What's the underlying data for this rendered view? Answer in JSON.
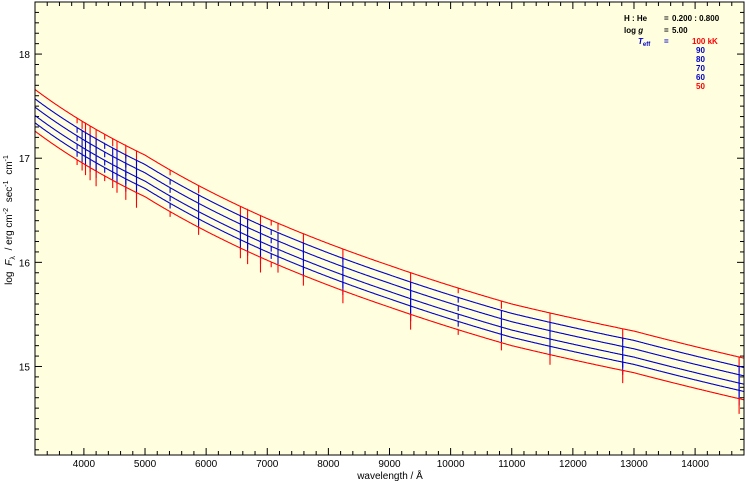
{
  "chart_data": {
    "type": "line",
    "xlabel": "wavelength / Å",
    "ylabel_parts": {
      "log": "log",
      "flux_symbol": "F",
      "flux_subscript": "λ",
      "unit_main": "/ erg cm",
      "unit_exp1": "-2",
      "unit_sec": "sec",
      "unit_exp2": "-1",
      "unit_cm": "cm",
      "unit_exp3": "-1"
    },
    "xlim": [
      3200,
      14800
    ],
    "ylim": [
      14.15,
      18.5
    ],
    "x_ticks": [
      4000,
      5000,
      6000,
      7000,
      8000,
      9000,
      10000,
      11000,
      12000,
      13000,
      14000
    ],
    "y_ticks": [
      15,
      16,
      17,
      18
    ],
    "background": "#ffffe0",
    "legend": {
      "placement": "top-right",
      "rows": [
        {
          "label": "H : He",
          "sep": "=",
          "value": "0.200 : 0.800"
        },
        {
          "label": "log g",
          "sep": "=",
          "value": "5.00"
        }
      ],
      "teff_label": "T",
      "teff_sub": "eff",
      "teff_sep": "="
    },
    "line_wavelengths": [
      3889,
      3970,
      4026,
      4102,
      4200,
      4340,
      4471,
      4542,
      4686,
      4861,
      5411,
      5876,
      6560,
      6678,
      6890,
      7065,
      7176,
      7592,
      8237,
      9345,
      10124,
      10830,
      11626,
      12816,
      14720
    ],
    "series": [
      {
        "name": "100 kK",
        "color": "#ff0000",
        "values_at": {
          "3200": 17.66,
          "5000": 17.03,
          "7000": 16.42,
          "9000": 15.97,
          "11000": 15.6,
          "13000": 15.34,
          "14800": 15.08
        }
      },
      {
        "name": "90",
        "color": "#0000cc",
        "values_at": {
          "3200": 17.57,
          "5000": 16.94,
          "7000": 16.33,
          "9000": 15.88,
          "11000": 15.51,
          "13000": 15.25,
          "14800": 14.99
        }
      },
      {
        "name": "80",
        "color": "#0000cc",
        "values_at": {
          "3200": 17.49,
          "5000": 16.86,
          "7000": 16.25,
          "9000": 15.8,
          "11000": 15.43,
          "13000": 15.17,
          "14800": 14.91
        }
      },
      {
        "name": "70",
        "color": "#0000cc",
        "values_at": {
          "3200": 17.41,
          "5000": 16.78,
          "7000": 16.17,
          "9000": 15.72,
          "11000": 15.35,
          "13000": 15.09,
          "14800": 14.83
        }
      },
      {
        "name": "60",
        "color": "#0000cc",
        "values_at": {
          "3200": 17.34,
          "5000": 16.71,
          "7000": 16.1,
          "9000": 15.65,
          "11000": 15.28,
          "13000": 15.02,
          "14800": 14.76
        }
      },
      {
        "name": "50",
        "color": "#ff0000",
        "values_at": {
          "3200": 17.26,
          "5000": 16.63,
          "7000": 16.02,
          "9000": 15.57,
          "11000": 15.2,
          "13000": 14.94,
          "14800": 14.68
        }
      }
    ]
  }
}
